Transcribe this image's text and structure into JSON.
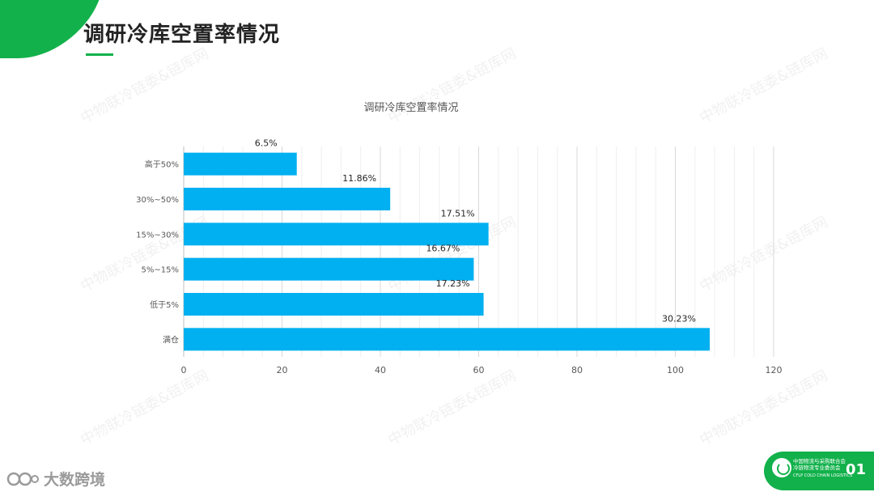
{
  "header": {
    "title": "调研冷库空置率情况"
  },
  "watermark_text": "中物联冷链委&链库网",
  "chart_data": {
    "type": "bar",
    "orientation": "horizontal",
    "title": "调研冷库空置率情况",
    "categories": [
      "高于50%",
      "30%~50%",
      "15%~30%",
      "5%~15%",
      "低于5%",
      "满仓"
    ],
    "values": [
      23,
      42,
      62,
      59,
      61,
      107
    ],
    "data_labels": [
      "6.5%",
      "11.86%",
      "17.51%",
      "16.67%",
      "17.23%",
      "30.23%"
    ],
    "x_ticks": [
      0,
      20,
      40,
      60,
      80,
      100,
      120
    ],
    "xlim": [
      0,
      120
    ],
    "xlabel": "",
    "ylabel": "",
    "grid": true,
    "bar_color": "#00b0f0"
  },
  "footer": {
    "brand_text": "大数跨境",
    "badge_line1": "中国物流与采购联合会",
    "badge_line2": "冷链物流专业委员会",
    "badge_small": "CFLP COLD CHAIN LOGISTICS",
    "page_number": "01"
  },
  "colors": {
    "accent_green": "#12b14b",
    "bar_blue": "#00b0f0"
  }
}
